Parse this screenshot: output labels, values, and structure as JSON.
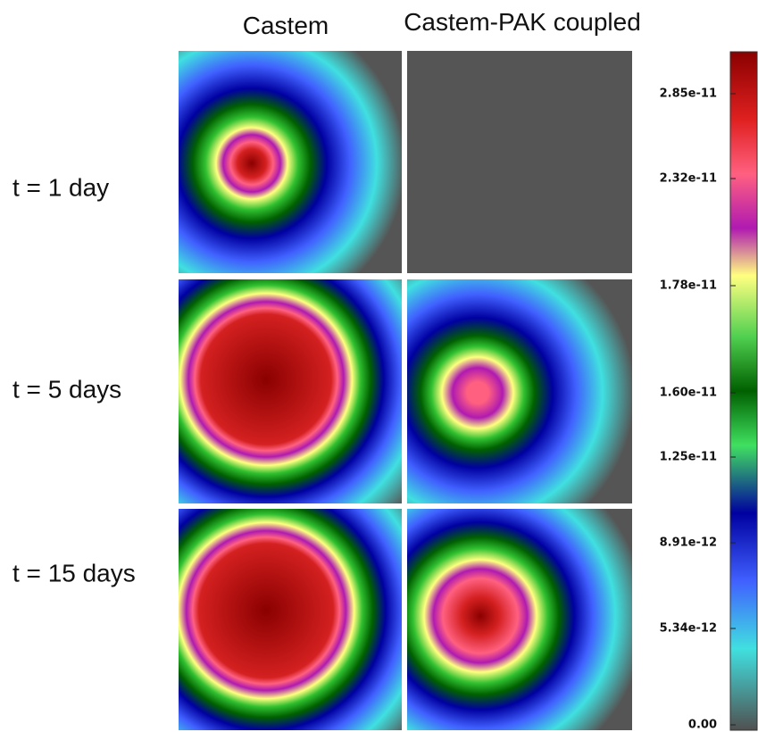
{
  "column_headers": [
    "Castem",
    "Castem-PAK coupled"
  ],
  "row_labels": [
    "t = 1 day",
    "t = 5 days",
    "t = 15 days"
  ],
  "colorbar": {
    "tick_labels": [
      "2.85e-11",
      "2.32e-11",
      "1.78e-11",
      "1.60e-11",
      "1.25e-11",
      "8.91e-12",
      "5.34e-12",
      "0.00"
    ]
  }
}
